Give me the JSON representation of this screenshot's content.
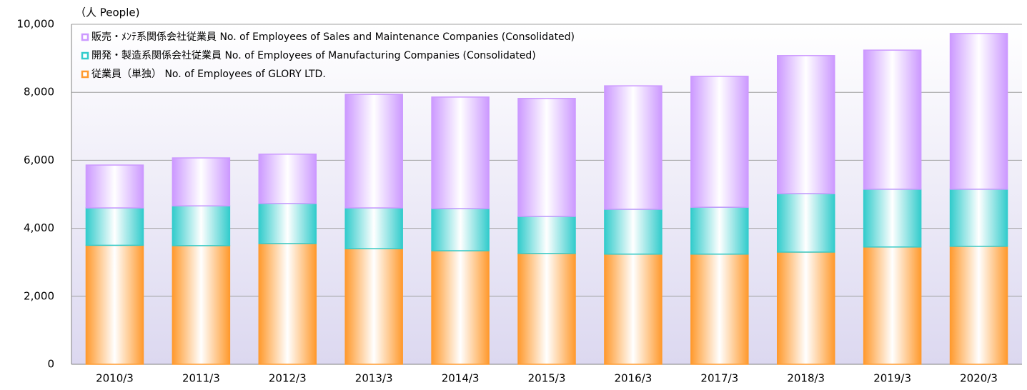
{
  "chart_data": {
    "type": "stacked-bar",
    "y_unit_label": "（人 People)",
    "categories": [
      "2010/3",
      "2011/3",
      "2012/3",
      "2013/3",
      "2014/3",
      "2015/3",
      "2016/3",
      "2017/3",
      "2018/3",
      "2019/3",
      "2020/3"
    ],
    "series": [
      {
        "name": "従業員（単独） No. of Employees of GLORY LTD.",
        "color": "#ff9a2e",
        "values": [
          3500,
          3490,
          3550,
          3400,
          3340,
          3260,
          3240,
          3240,
          3300,
          3450,
          3470
        ]
      },
      {
        "name": "開発・製造系関係会社従業員 No. of Employees of Manufacturing Companies (Consolidated)",
        "color": "#33cccc",
        "values": [
          1100,
          1170,
          1180,
          1200,
          1240,
          1090,
          1320,
          1380,
          1720,
          1700,
          1680
        ]
      },
      {
        "name": "販売・ﾒﾝﾃ系関係会社従業員 No. of Employees of Sales and Maintenance Companies (Consolidated)",
        "color": "#cc99ff",
        "values": [
          1260,
          1410,
          1450,
          3340,
          3280,
          3470,
          3630,
          3850,
          4060,
          4090,
          4580
        ]
      }
    ],
    "ylim": [
      0,
      10000
    ],
    "yticks": [
      0,
      {
        "value": 2000,
        "label": "2,000"
      },
      {
        "value": 4000,
        "label": "4,000"
      },
      {
        "value": 6000,
        "label": "6,000"
      },
      {
        "value": 8000,
        "label": "8,000"
      },
      {
        "value": 10000,
        "label": "10,000"
      }
    ],
    "grid": true
  }
}
